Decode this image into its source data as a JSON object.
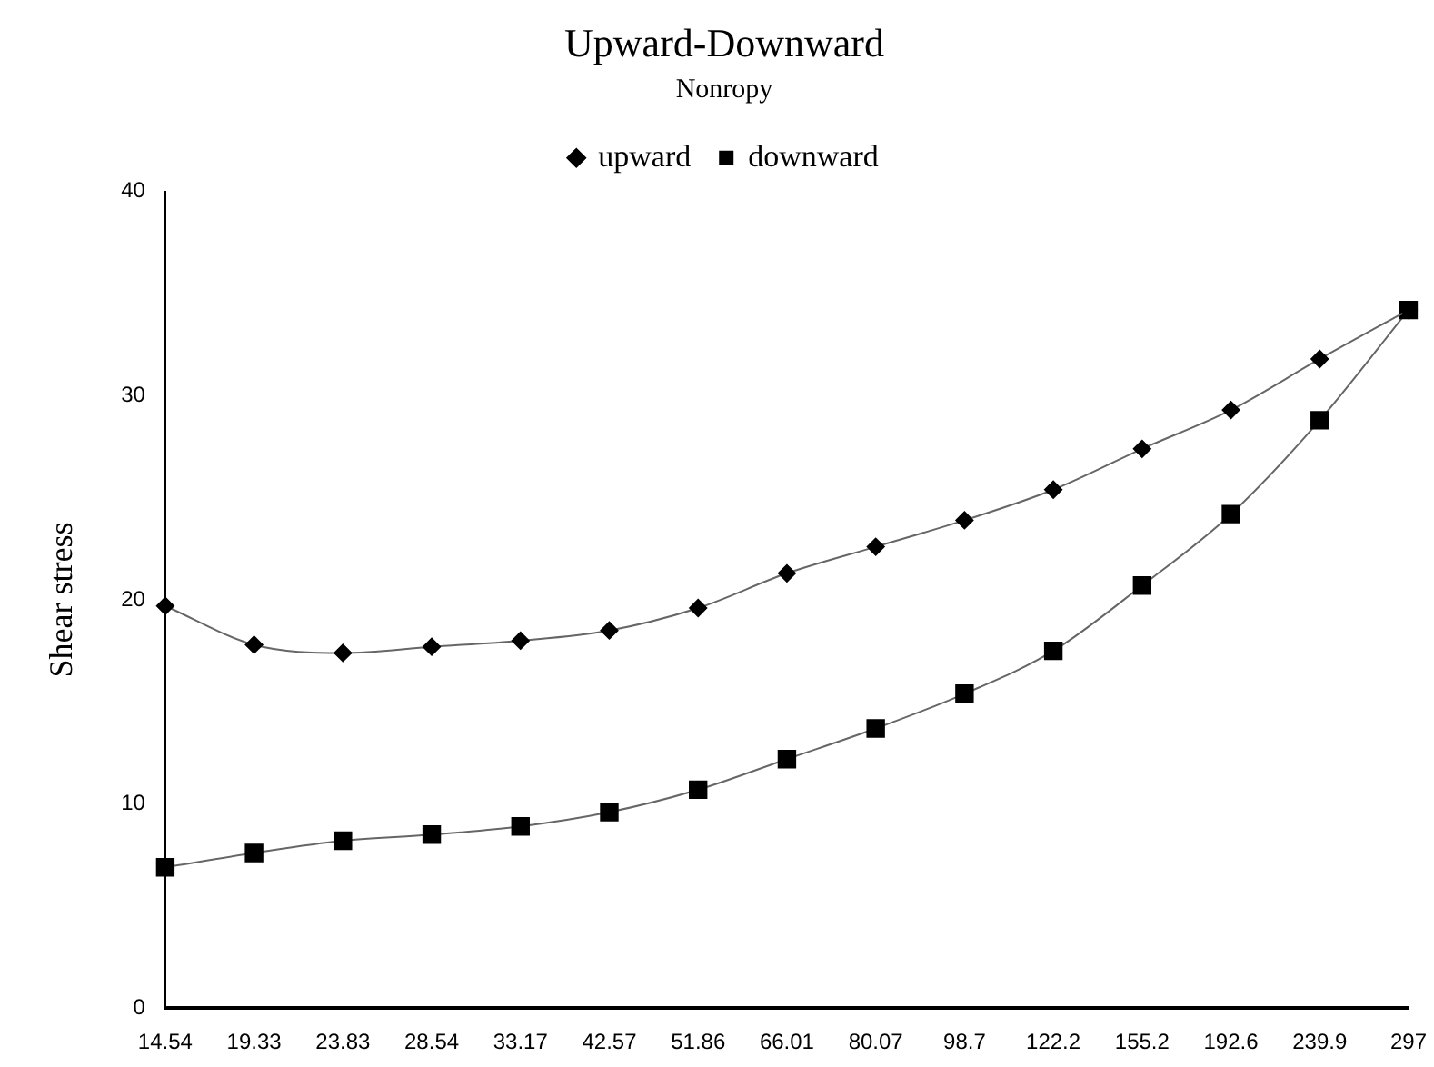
{
  "chart_data": {
    "type": "line",
    "title": "Upward-Downward",
    "subtitle": "Nonropy",
    "ylabel": "Shear stress",
    "categories": [
      "14.54",
      "19.33",
      "23.83",
      "28.54",
      "33.17",
      "42.57",
      "51.86",
      "66.01",
      "80.07",
      "98.7",
      "122.2",
      "155.2",
      "192.6",
      "239.9",
      "297"
    ],
    "series": [
      {
        "name": "upward",
        "color": "#000000",
        "marker": "diamond",
        "values": [
          19.7,
          17.8,
          17.4,
          17.7,
          18.0,
          18.5,
          19.6,
          21.3,
          22.6,
          23.9,
          25.4,
          27.4,
          29.3,
          31.8,
          34.2
        ]
      },
      {
        "name": "downward",
        "color": "#000000",
        "marker": "square",
        "values": [
          6.9,
          7.6,
          8.2,
          8.5,
          8.9,
          9.6,
          10.7,
          12.2,
          13.7,
          15.4,
          17.5,
          20.7,
          24.2,
          28.8,
          34.2
        ]
      }
    ],
    "ylim": [
      0,
      40
    ],
    "yticks": [
      0,
      10,
      20,
      30,
      40
    ],
    "grid": false,
    "legend": "top"
  }
}
